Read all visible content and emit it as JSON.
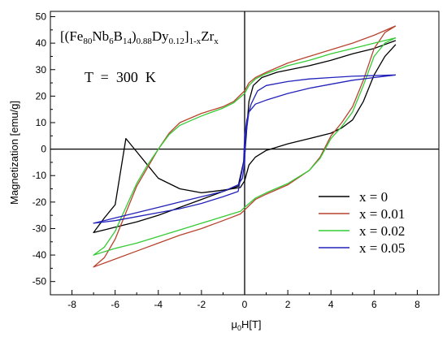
{
  "chart_data": {
    "type": "line",
    "formula": {
      "open": "[(Fe",
      "fe_sub": "80",
      "nb": "Nb",
      "nb_sub": "6",
      "b": "B",
      "b_sub": "14",
      "mid": ")",
      "mid_sub": "0.88",
      "dy": "Dy",
      "dy_sub": "0.12",
      "close": "]",
      "close_sub": "1-x",
      "zr": "Zr",
      "zr_sub": "x"
    },
    "annotation": "T  =  300  K",
    "xlabel_mu": "μ",
    "xlabel_sub": "0",
    "xlabel_rest": "H[T]",
    "ylabel": "Magnetization [emu/g]",
    "xlim": [
      -9,
      9
    ],
    "ylim": [
      -55,
      52
    ],
    "x_ticks": [
      "-8",
      "-6",
      "-4",
      "-2",
      "0",
      "2",
      "4",
      "6",
      "8"
    ],
    "y_ticks": [
      "-50",
      "-40",
      "-30",
      "-20",
      "-10",
      "0",
      "10",
      "20",
      "30",
      "40",
      "50"
    ],
    "grid": false,
    "legend_position": "lower-right",
    "series": [
      {
        "name": "x  =  0",
        "color": "#000000",
        "points": [
          [
            7,
            39.5
          ],
          [
            6.5,
            35
          ],
          [
            6,
            28
          ],
          [
            5.5,
            18
          ],
          [
            5,
            11
          ],
          [
            4.5,
            8
          ],
          [
            4,
            6
          ],
          [
            3,
            4
          ],
          [
            2,
            2
          ],
          [
            1,
            -0.5
          ],
          [
            0.5,
            -3
          ],
          [
            0.2,
            -6
          ],
          [
            0,
            -12
          ],
          [
            -0.2,
            -14.5
          ],
          [
            -1,
            -15.5
          ],
          [
            -2,
            -16.5
          ],
          [
            -3,
            -15
          ],
          [
            -4,
            -11
          ],
          [
            -4.5,
            -6
          ],
          [
            -5,
            -1
          ],
          [
            -5.5,
            4
          ],
          [
            -6,
            -21
          ],
          [
            -6.5,
            -26
          ],
          [
            -7,
            -31.5
          ],
          [
            -6.5,
            -30.5
          ],
          [
            -6,
            -29.5
          ],
          [
            -5,
            -27.5
          ],
          [
            -4,
            -25
          ],
          [
            -3,
            -22
          ],
          [
            -2,
            -19
          ],
          [
            -1,
            -16
          ],
          [
            -0.3,
            -14
          ],
          [
            0,
            -3
          ],
          [
            0.1,
            8
          ],
          [
            0.2,
            18
          ],
          [
            0.4,
            24
          ],
          [
            0.8,
            27
          ],
          [
            1.5,
            29
          ],
          [
            3,
            31.5
          ],
          [
            4,
            33.5
          ],
          [
            5,
            36
          ],
          [
            6,
            38
          ],
          [
            7,
            41
          ]
        ]
      },
      {
        "name": "x  =  0.01",
        "color": "#b8442f",
        "points": [
          [
            7,
            46.5
          ],
          [
            6.5,
            44
          ],
          [
            6,
            38
          ],
          [
            5.5,
            26
          ],
          [
            5,
            16
          ],
          [
            4.5,
            10
          ],
          [
            4,
            5
          ],
          [
            3.5,
            -3
          ],
          [
            3,
            -8
          ],
          [
            2,
            -13.5
          ],
          [
            1,
            -17
          ],
          [
            0.5,
            -19
          ],
          [
            0,
            -23
          ],
          [
            -0.2,
            -24.5
          ],
          [
            -1,
            -27
          ],
          [
            -2,
            -30
          ],
          [
            -3,
            -32.5
          ],
          [
            -4,
            -35.5
          ],
          [
            -5,
            -38.5
          ],
          [
            -6,
            -41.5
          ],
          [
            -7,
            -44.5
          ],
          [
            -6.5,
            -41
          ],
          [
            -6,
            -34
          ],
          [
            -5.5,
            -24
          ],
          [
            -5,
            -14
          ],
          [
            -4.5,
            -7
          ],
          [
            -4,
            0
          ],
          [
            -3.5,
            6
          ],
          [
            -3,
            10
          ],
          [
            -2,
            13.5
          ],
          [
            -1,
            16
          ],
          [
            -0.5,
            18
          ],
          [
            0,
            22
          ],
          [
            0.2,
            25
          ],
          [
            0.5,
            27
          ],
          [
            1,
            29
          ],
          [
            2,
            32.5
          ],
          [
            3,
            35
          ],
          [
            4,
            37.5
          ],
          [
            5,
            40
          ],
          [
            6,
            43
          ],
          [
            7,
            46.5
          ]
        ]
      },
      {
        "name": "x  =  0.02",
        "color": "#33cc33",
        "points": [
          [
            7,
            42
          ],
          [
            6.5,
            40
          ],
          [
            6,
            35
          ],
          [
            5.5,
            24
          ],
          [
            5,
            14
          ],
          [
            4.5,
            8.5
          ],
          [
            4,
            4
          ],
          [
            3.5,
            -3.5
          ],
          [
            3,
            -8
          ],
          [
            2,
            -13
          ],
          [
            1,
            -16.5
          ],
          [
            0.5,
            -18.5
          ],
          [
            0,
            -22
          ],
          [
            -0.2,
            -23.5
          ],
          [
            -1,
            -25.5
          ],
          [
            -2,
            -28
          ],
          [
            -3,
            -30.5
          ],
          [
            -4,
            -33
          ],
          [
            -5,
            -35.5
          ],
          [
            -6,
            -37.5
          ],
          [
            -7,
            -40
          ],
          [
            -6.5,
            -37
          ],
          [
            -6,
            -31
          ],
          [
            -5.5,
            -22
          ],
          [
            -5,
            -13
          ],
          [
            -4.5,
            -6
          ],
          [
            -4,
            0
          ],
          [
            -3.5,
            5.5
          ],
          [
            -3,
            9
          ],
          [
            -2,
            12.5
          ],
          [
            -1,
            15.5
          ],
          [
            -0.5,
            17.5
          ],
          [
            0,
            21
          ],
          [
            0.2,
            24
          ],
          [
            0.5,
            26.5
          ],
          [
            1,
            28.5
          ],
          [
            2,
            31.5
          ],
          [
            3,
            33.5
          ],
          [
            4,
            36
          ],
          [
            5,
            38
          ],
          [
            6,
            40
          ],
          [
            7,
            42
          ]
        ]
      },
      {
        "name": "x  =  0.05",
        "color": "#2222bb",
        "points": [
          [
            7,
            28
          ],
          [
            6,
            27
          ],
          [
            5,
            26
          ],
          [
            4,
            24.5
          ],
          [
            3,
            23
          ],
          [
            2,
            21
          ],
          [
            1,
            18.5
          ],
          [
            0.5,
            17
          ],
          [
            0.2,
            14
          ],
          [
            0.05,
            5
          ],
          [
            0,
            -5
          ],
          [
            -0.1,
            -11
          ],
          [
            -0.3,
            -13.5
          ],
          [
            -1,
            -16
          ],
          [
            -2,
            -18
          ],
          [
            -3,
            -20
          ],
          [
            -4,
            -22
          ],
          [
            -5,
            -24
          ],
          [
            -6,
            -26
          ],
          [
            -7,
            -28
          ],
          [
            -6,
            -27
          ],
          [
            -5,
            -25.5
          ],
          [
            -4,
            -24
          ],
          [
            -3,
            -22.5
          ],
          [
            -2,
            -20.5
          ],
          [
            -1,
            -18
          ],
          [
            -0.3,
            -16
          ],
          [
            -0.05,
            -5
          ],
          [
            0,
            5
          ],
          [
            0.1,
            11
          ],
          [
            0.3,
            17
          ],
          [
            0.6,
            22
          ],
          [
            1,
            24
          ],
          [
            2,
            25.5
          ],
          [
            3,
            26.5
          ],
          [
            4,
            27
          ],
          [
            5,
            27.5
          ],
          [
            7,
            28
          ]
        ]
      }
    ]
  }
}
